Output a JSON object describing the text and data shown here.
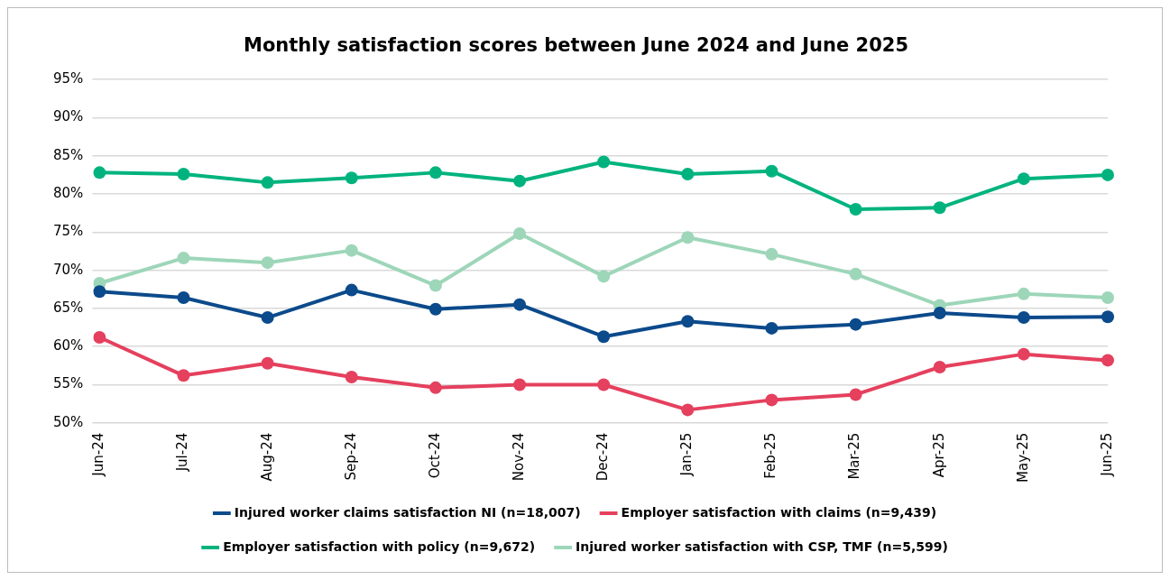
{
  "chart_data": {
    "type": "line",
    "title": "Monthly satisfaction scores between June 2024 and June 2025",
    "categories": [
      "Jun-24",
      "Jul-24",
      "Aug-24",
      "Sep-24",
      "Oct-24",
      "Nov-24",
      "Dec-24",
      "Jan-25",
      "Feb-25",
      "Mar-25",
      "Apr-25",
      "May-25",
      "Jun-25"
    ],
    "series": [
      {
        "name": "Injured worker claims satisfaction NI (n=18,007)",
        "color": "#0b4a8b",
        "values": [
          67.2,
          66.4,
          63.8,
          67.4,
          64.9,
          65.5,
          61.3,
          63.3,
          62.4,
          62.9,
          64.4,
          63.8,
          63.9
        ]
      },
      {
        "name": "Employer satisfaction with claims (n=9,439)",
        "color": "#e5405e",
        "values": [
          61.2,
          56.2,
          57.8,
          56.0,
          54.6,
          55.0,
          55.0,
          51.7,
          53.0,
          53.7,
          57.3,
          59.0,
          58.2
        ]
      },
      {
        "name": "Employer satisfaction with policy (n=9,672)",
        "color": "#00b37e",
        "values": [
          82.8,
          82.6,
          81.5,
          82.1,
          82.8,
          81.7,
          84.2,
          82.6,
          83.0,
          78.0,
          78.2,
          82.0,
          82.5
        ]
      },
      {
        "name": "Injured worker satisfaction with CSP, TMF (n=5,599)",
        "color": "#9dd6b9",
        "values": [
          68.3,
          71.6,
          71.0,
          72.6,
          68.0,
          74.8,
          69.2,
          74.3,
          72.1,
          69.5,
          65.4,
          66.9,
          66.4
        ]
      }
    ],
    "ylim": [
      50,
      95
    ],
    "yticks": [
      {
        "value": 50,
        "label": "50%"
      },
      {
        "value": 55,
        "label": "55%"
      },
      {
        "value": 60,
        "label": "60%"
      },
      {
        "value": 65,
        "label": "65%"
      },
      {
        "value": 70,
        "label": "70%"
      },
      {
        "value": 75,
        "label": "75%"
      },
      {
        "value": 80,
        "label": "80%"
      },
      {
        "value": 85,
        "label": "85%"
      },
      {
        "value": 90,
        "label": "90%"
      },
      {
        "value": 95,
        "label": "95%"
      }
    ],
    "grid": "y",
    "legend": "bottom",
    "marker": "circle",
    "line_style": "solid"
  }
}
